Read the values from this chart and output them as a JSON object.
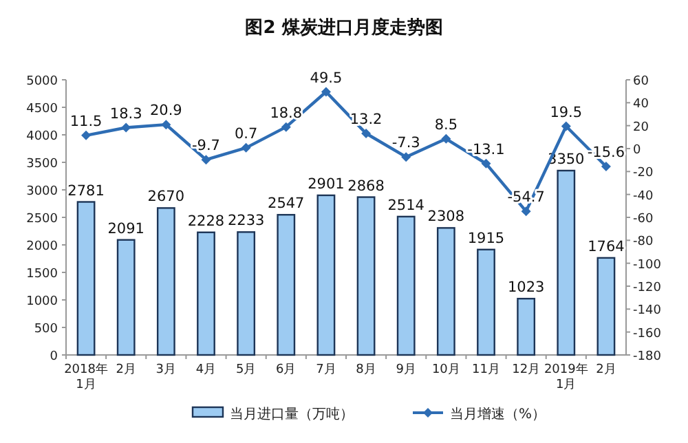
{
  "chart_data": {
    "type": "bar",
    "title": "图2 煤炭进口月度走势图",
    "categories": [
      "2018年\n1月",
      "2月",
      "3月",
      "4月",
      "5月",
      "6月",
      "7月",
      "8月",
      "9月",
      "10月",
      "11月",
      "12月",
      "2019年\n1月",
      "2月"
    ],
    "series": [
      {
        "name": "当月进口量（万吨）",
        "color": "#9dcbf2",
        "values": [
          2781,
          2091,
          2670,
          2228,
          2233,
          2547,
          2901,
          2868,
          2514,
          2308,
          1915,
          1023,
          3350,
          1764
        ]
      },
      {
        "name": "当月增速（%）",
        "type": "line",
        "axis": "y2",
        "color": "#2e6db4",
        "marker": "diamond",
        "values": [
          11.5,
          18.3,
          20.9,
          -9.7,
          0.7,
          18.8,
          49.5,
          13.2,
          -7.3,
          8.5,
          -13.1,
          -54.7,
          19.5,
          -15.6
        ]
      }
    ],
    "ylim": [
      0,
      5000
    ],
    "yticks": [
      0,
      500,
      1000,
      1500,
      2000,
      2500,
      3000,
      3500,
      4000,
      4500,
      5000
    ],
    "y2lim": [
      -180,
      60
    ],
    "y2ticks": [
      -180,
      -160,
      -140,
      -120,
      -100,
      -80,
      -60,
      -40,
      -20,
      0,
      20,
      40,
      60
    ],
    "data_labels": true,
    "legend": "bottom",
    "grid": false
  }
}
